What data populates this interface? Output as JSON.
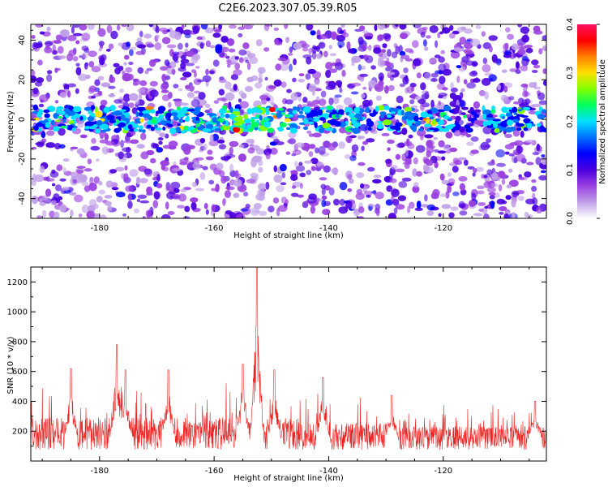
{
  "title": "C2E6.2023.307.05.39.R05",
  "colors": {
    "snr_line": "#ee2222",
    "axis": "#000000",
    "colorbar": [
      "#ffffff",
      "#c0a0e8",
      "#9a40e0",
      "#4b00e0",
      "#0000ff",
      "#0070ff",
      "#00e0ff",
      "#00ff60",
      "#80ff00",
      "#ffe000",
      "#ff8000",
      "#ff0000",
      "#ff1060"
    ]
  },
  "chart_data": [
    {
      "type": "heatmap",
      "name": "spectrogram",
      "xlabel": "Height of straight line (km)",
      "ylabel": "Frequency (Hz)",
      "xlim": [
        -192,
        -102
      ],
      "ylim": [
        -50,
        48
      ],
      "xticks": [
        -180,
        -160,
        -140,
        -120
      ],
      "xtick_labels": [
        "-180",
        "-160",
        "-140",
        "-120"
      ],
      "yticks": [
        -40,
        -20,
        0,
        20,
        40
      ],
      "ytick_labels": [
        "-40",
        "-20",
        "0",
        "20",
        "40"
      ],
      "colorbar": {
        "label": "Normalized spectral amplitude",
        "range": [
          0.0,
          0.4
        ],
        "ticks": [
          0.0,
          0.1,
          0.2,
          0.3,
          0.4
        ],
        "tick_labels": [
          "0.0",
          "0.1",
          "0.2",
          "0.3",
          "0.4"
        ]
      },
      "signal_band_center_hz": 0,
      "signal_band_halfwidth_hz": 6,
      "peak_amplitude_height_km": -155
    },
    {
      "type": "line",
      "name": "snr",
      "xlabel": "Height of straight line (km)",
      "ylabel": "SNR (10 * v/v)",
      "xlim": [
        -192,
        -102
      ],
      "ylim": [
        0,
        1300
      ],
      "xticks": [
        -180,
        -160,
        -140,
        -120
      ],
      "xtick_labels": [
        "-180",
        "-160",
        "-140",
        "-120"
      ],
      "yticks": [
        200,
        400,
        600,
        800,
        1000,
        1200
      ],
      "ytick_labels": [
        "200",
        "400",
        "600",
        "800",
        "1000",
        "1200"
      ],
      "baseline": 150,
      "peaks": [
        {
          "x": -152.5,
          "y": 1300
        },
        {
          "x": -177,
          "y": 780
        },
        {
          "x": -155,
          "y": 650
        },
        {
          "x": -185,
          "y": 620
        },
        {
          "x": -175.5,
          "y": 610
        },
        {
          "x": -168,
          "y": 610
        },
        {
          "x": -149.5,
          "y": 610
        },
        {
          "x": -141,
          "y": 560
        },
        {
          "x": -129,
          "y": 440
        },
        {
          "x": -104,
          "y": 400
        }
      ]
    }
  ]
}
